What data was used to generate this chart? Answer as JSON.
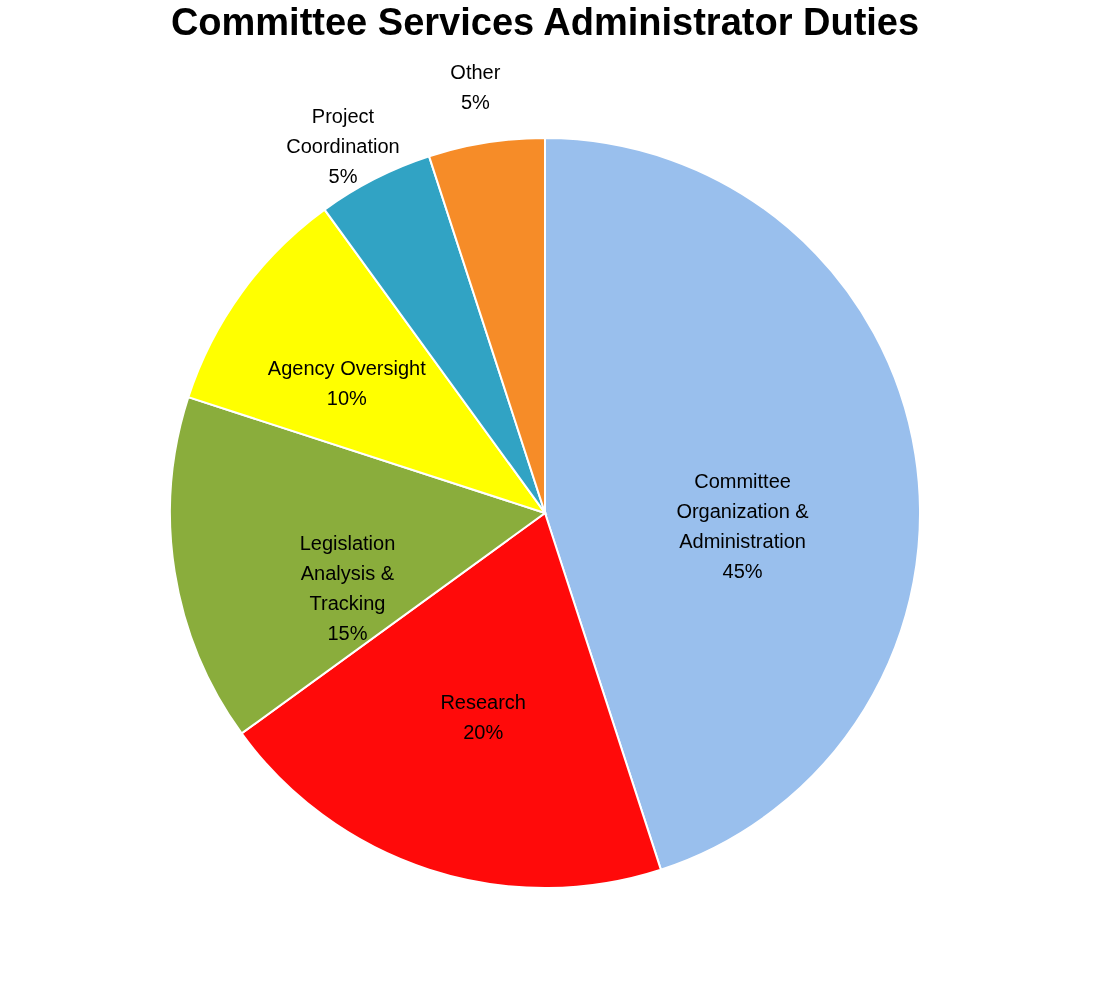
{
  "chart_data": {
    "type": "pie",
    "title": "Committee Services Administrator Duties",
    "categories": [
      "Committee Organization & Administration",
      "Research",
      "Legislation Analysis & Tracking",
      "Agency Oversight",
      "Project Coordination",
      "Other"
    ],
    "values": [
      45,
      20,
      15,
      10,
      5,
      5
    ],
    "colors": [
      "#99bfed",
      "#ff0a0a",
      "#8aad3c",
      "#ffff00",
      "#31a3c4",
      "#f68c28"
    ],
    "value_labels": [
      "45%",
      "20%",
      "15%",
      "10%",
      "5%",
      "5%"
    ],
    "legend": false
  }
}
